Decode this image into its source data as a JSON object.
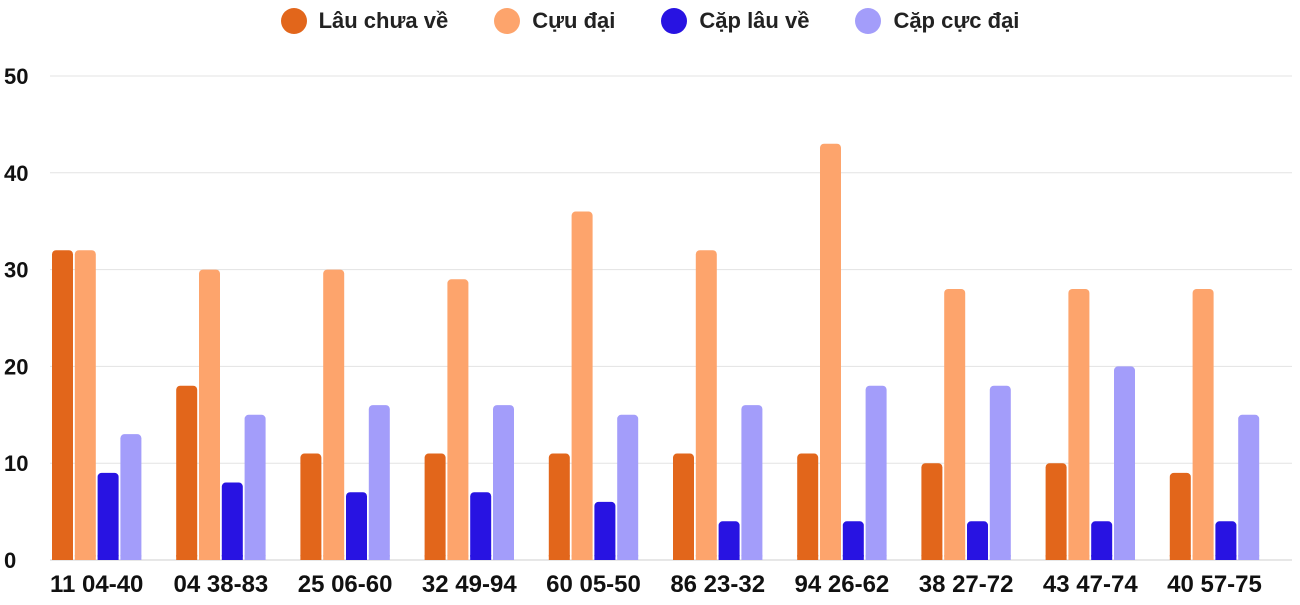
{
  "chart_data": {
    "type": "bar",
    "title": "",
    "xlabel": "",
    "ylabel": "",
    "ylim": [
      0,
      50
    ],
    "yticks": [
      0,
      10,
      20,
      30,
      40,
      50
    ],
    "grid": true,
    "legend_position": "top-center",
    "categories": [
      "11 04-40",
      "04 38-83",
      "25 06-60",
      "32 49-94",
      "60 05-50",
      "86 23-32",
      "94 26-62",
      "38 27-72",
      "43 47-74",
      "40 57-75"
    ],
    "series": [
      {
        "name": "Lâu chưa về",
        "color": "#e2661b",
        "values": [
          32,
          18,
          11,
          11,
          11,
          11,
          11,
          10,
          10,
          9
        ]
      },
      {
        "name": "Cựu đại",
        "color": "#fda46c",
        "values": [
          32,
          30,
          30,
          29,
          36,
          32,
          43,
          28,
          28,
          28
        ]
      },
      {
        "name": "Cặp lâu về",
        "color": "#2813e2",
        "values": [
          9,
          8,
          7,
          7,
          6,
          4,
          4,
          4,
          4,
          4
        ]
      },
      {
        "name": "Cặp cực đại",
        "color": "#a39dfa",
        "values": [
          13,
          15,
          16,
          16,
          15,
          16,
          18,
          18,
          20,
          15
        ]
      }
    ]
  }
}
